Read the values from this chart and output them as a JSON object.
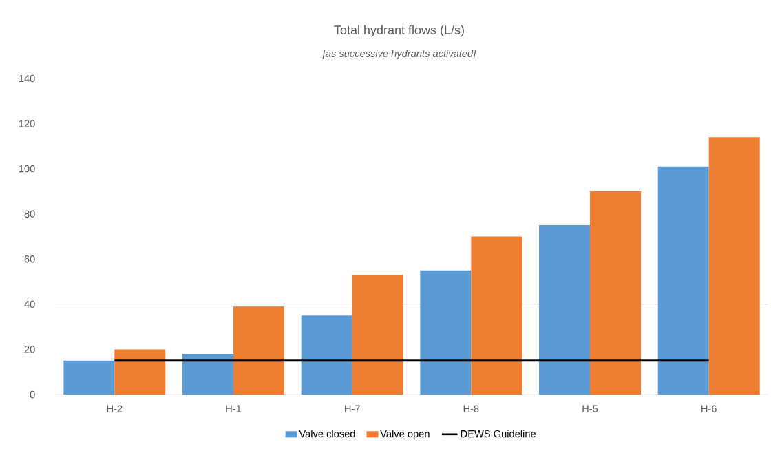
{
  "chart_data": {
    "type": "bar",
    "title": "Total hydrant flows (L/s)",
    "subtitle": "[as successive hydrants activated]",
    "categories": [
      "H-2",
      "H-1",
      "H-7",
      "H-8",
      "H-5",
      "H-6"
    ],
    "series": [
      {
        "name": "Valve closed",
        "color": "#5b9bd5",
        "values": [
          15,
          18,
          35,
          55,
          75,
          101
        ]
      },
      {
        "name": "Valve open",
        "color": "#ed7d31",
        "values": [
          20,
          39,
          53,
          70,
          90,
          114
        ]
      },
      {
        "name": "DEWS Guideline",
        "type": "line",
        "color": "#000000",
        "values": [
          15,
          15,
          15,
          15,
          15,
          15
        ]
      }
    ],
    "ylim": [
      0,
      140
    ],
    "yticks": [
      0,
      20,
      40,
      60,
      80,
      100,
      120,
      140
    ],
    "ref_lines": [
      {
        "axis": "y",
        "value": 40,
        "color": "#d9d9d9"
      }
    ],
    "legend": "bottom"
  }
}
